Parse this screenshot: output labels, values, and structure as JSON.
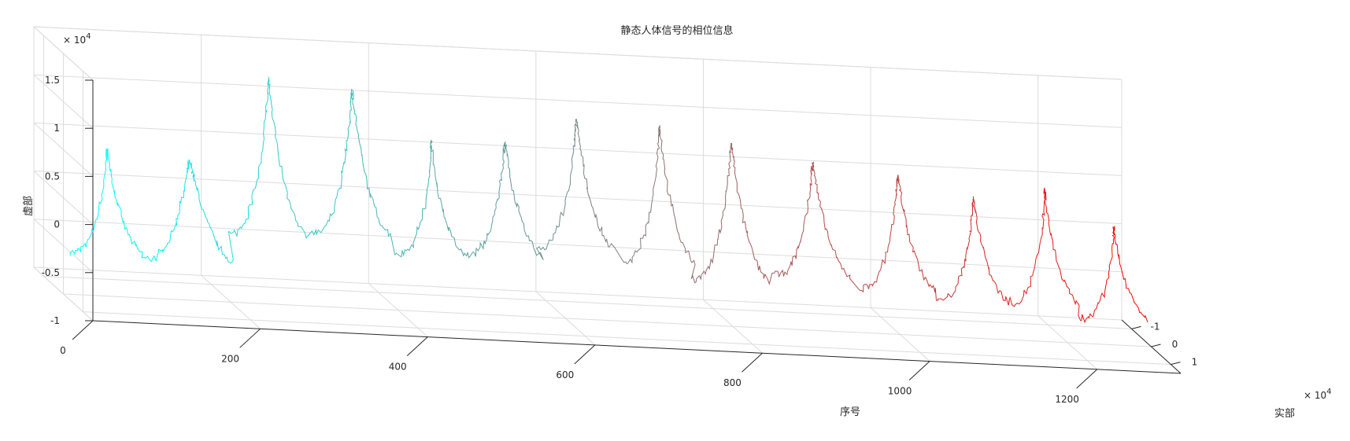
{
  "chart_data": {
    "type": "line",
    "title": "静态人体信号的相位信息",
    "xlabel": "序号",
    "ylabel": "实部",
    "zlabel": "虚部",
    "xlim": [
      0,
      1300
    ],
    "xticks": [
      "0",
      "200",
      "400",
      "600",
      "800",
      "1000",
      "1200"
    ],
    "ylim": [
      -1.5,
      1.5
    ],
    "yticks": [
      "-1",
      "0",
      "1"
    ],
    "zlim": [
      -1,
      1.5
    ],
    "zticks": [
      "-1",
      "-0.5",
      "0",
      "0.5",
      "1",
      "1.5"
    ],
    "exponent_z": "× 10",
    "exponent_z_power": "4",
    "exponent_y": "× 10",
    "exponent_y_power": "4",
    "grid": true,
    "color_start": "#00ffff",
    "color_end": "#ff0000",
    "n_points": 1300,
    "cycles": [
      {
        "x0": 0,
        "len": 90,
        "yc": 0.3,
        "zmin": -0.5,
        "zmax": 0.55
      },
      {
        "x0": 90,
        "len": 110,
        "yc": 0.2,
        "zmin": -0.55,
        "zmax": 0.45
      },
      {
        "x0": 200,
        "len": 95,
        "yc": -0.1,
        "zmin": -0.3,
        "zmax": 1.3
      },
      {
        "x0": 295,
        "len": 95,
        "yc": 0.1,
        "zmin": -0.2,
        "zmax": 1.25
      },
      {
        "x0": 390,
        "len": 85,
        "yc": 0.3,
        "zmin": -0.35,
        "zmax": 0.8
      },
      {
        "x0": 475,
        "len": 95,
        "yc": 0.2,
        "zmin": -0.35,
        "zmax": 0.8
      },
      {
        "x0": 570,
        "len": 95,
        "yc": -0.2,
        "zmin": -0.3,
        "zmax": 1.0
      },
      {
        "x0": 665,
        "len": 90,
        "yc": 0.1,
        "zmin": -0.35,
        "zmax": 1.05
      },
      {
        "x0": 755,
        "len": 95,
        "yc": -0.2,
        "zmin": -0.55,
        "zmax": 0.85
      },
      {
        "x0": 850,
        "len": 95,
        "yc": -0.1,
        "zmin": -0.45,
        "zmax": 0.7
      },
      {
        "x0": 945,
        "len": 95,
        "yc": 0.2,
        "zmin": -0.5,
        "zmax": 0.65
      },
      {
        "x0": 1040,
        "len": 90,
        "yc": 0.1,
        "zmin": -0.6,
        "zmax": 0.45
      },
      {
        "x0": 1130,
        "len": 85,
        "yc": 0.0,
        "zmin": -0.6,
        "zmax": 0.55
      },
      {
        "x0": 1215,
        "len": 85,
        "yc": -0.1,
        "zmin": -0.75,
        "zmax": 0.2
      }
    ]
  }
}
